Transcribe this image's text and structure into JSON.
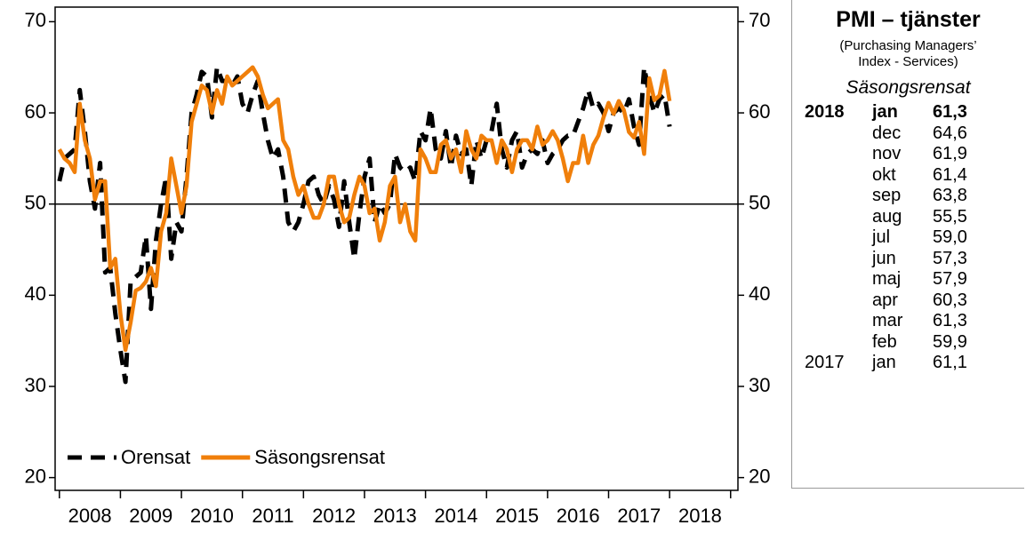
{
  "chart_data": {
    "type": "line",
    "x": [
      2008,
      2008.083,
      2008.167,
      2008.25,
      2008.333,
      2008.417,
      2008.5,
      2008.583,
      2008.667,
      2008.75,
      2008.833,
      2008.917,
      2009,
      2009.083,
      2009.167,
      2009.25,
      2009.333,
      2009.417,
      2009.5,
      2009.583,
      2009.667,
      2009.75,
      2009.833,
      2009.917,
      2010,
      2010.083,
      2010.167,
      2010.25,
      2010.333,
      2010.417,
      2010.5,
      2010.583,
      2010.667,
      2010.75,
      2010.833,
      2010.917,
      2011,
      2011.083,
      2011.167,
      2011.25,
      2011.333,
      2011.417,
      2011.5,
      2011.583,
      2011.667,
      2011.75,
      2011.833,
      2011.917,
      2012,
      2012.083,
      2012.167,
      2012.25,
      2012.333,
      2012.417,
      2012.5,
      2012.583,
      2012.667,
      2012.75,
      2012.833,
      2012.917,
      2013,
      2013.083,
      2013.167,
      2013.25,
      2013.333,
      2013.417,
      2013.5,
      2013.583,
      2013.667,
      2013.75,
      2013.833,
      2013.917,
      2014,
      2014.083,
      2014.167,
      2014.25,
      2014.333,
      2014.417,
      2014.5,
      2014.583,
      2014.667,
      2014.75,
      2014.833,
      2014.917,
      2015,
      2015.083,
      2015.167,
      2015.25,
      2015.333,
      2015.417,
      2015.5,
      2015.583,
      2015.667,
      2015.75,
      2015.833,
      2015.917,
      2016,
      2016.083,
      2016.167,
      2016.25,
      2016.333,
      2016.417,
      2016.5,
      2016.583,
      2016.667,
      2016.75,
      2016.833,
      2016.917,
      2017,
      2017.083,
      2017.167,
      2017.25,
      2017.333,
      2017.417,
      2017.5,
      2017.583,
      2017.667,
      2017.75,
      2017.833,
      2017.917,
      2018
    ],
    "series": [
      {
        "name": "Orensat",
        "color": "#000000",
        "dashed": true,
        "values": [
          52.5,
          55,
          55.5,
          56,
          62.5,
          58,
          52.5,
          49.5,
          54.5,
          42.5,
          43,
          38,
          34,
          30.5,
          41.5,
          42,
          42.5,
          46.5,
          38.5,
          46,
          50,
          53,
          44,
          48,
          47,
          53,
          60,
          62,
          64.5,
          64,
          59.5,
          65,
          63.5,
          63.5,
          63,
          64,
          61,
          60,
          62,
          63.5,
          60,
          57,
          55,
          56,
          53,
          48,
          47,
          48,
          50,
          52.5,
          53,
          51,
          50,
          52,
          50.5,
          47.5,
          52.5,
          48,
          44,
          49,
          53,
          55,
          48,
          50,
          49,
          50,
          55.5,
          54,
          53.5,
          54,
          52.5,
          58,
          57,
          60.5,
          56,
          55,
          58,
          54,
          57.5,
          55.5,
          56,
          52,
          57,
          55,
          57,
          58,
          61,
          56,
          54,
          57,
          58,
          54,
          55.5,
          56,
          55.5,
          57,
          54.5,
          55.5,
          56,
          57,
          57.5,
          57.5,
          59,
          60.5,
          62.5,
          60.5,
          61,
          60,
          58,
          60,
          60.5,
          60,
          61.5,
          58.5,
          56.5,
          65,
          62,
          60,
          61.5,
          62,
          58.5
        ]
      },
      {
        "name": "Säsongsrensat",
        "color": "#f07f0a",
        "dashed": false,
        "values": [
          56,
          55,
          54.5,
          53.5,
          61,
          57,
          55,
          50.5,
          52.5,
          52.5,
          43,
          44,
          38,
          34,
          37,
          40.5,
          40.8,
          41.5,
          43,
          41,
          47,
          49,
          55,
          52,
          49,
          52,
          59,
          61,
          63,
          62.5,
          60,
          62.5,
          61,
          64,
          63,
          63.5,
          64,
          64.5,
          65,
          64,
          62,
          60.5,
          61,
          61.5,
          57,
          56,
          53,
          51,
          52,
          50,
          48.5,
          48.5,
          50,
          53,
          53,
          50,
          48,
          48.5,
          51,
          53,
          52,
          49,
          49.5,
          46,
          48,
          52,
          53,
          48,
          50,
          47,
          46,
          56,
          55,
          53.5,
          53.5,
          56.5,
          57,
          55,
          56,
          53.5,
          58,
          56,
          55,
          57.5,
          57,
          57,
          54.5,
          57,
          56,
          53.5,
          56,
          57,
          57,
          56,
          58.5,
          56.5,
          57,
          58,
          57,
          55,
          52.5,
          54.5,
          54.5,
          57.5,
          54.5,
          56.5,
          57.5,
          59.5,
          61.1,
          59.9,
          61.3,
          60.3,
          57.9,
          57.3,
          59.0,
          55.5,
          63.8,
          61.4,
          61.9,
          64.6,
          61.3
        ]
      }
    ],
    "xlim": [
      2007.93,
      2019.12
    ],
    "xticks": [
      {
        "value": 2008,
        "label": "2008"
      },
      {
        "value": 2009,
        "label": "2009"
      },
      {
        "value": 2010,
        "label": "2010"
      },
      {
        "value": 2011,
        "label": "2011"
      },
      {
        "value": 2012,
        "label": "2012"
      },
      {
        "value": 2013,
        "label": "2013"
      },
      {
        "value": 2014,
        "label": "2014"
      },
      {
        "value": 2015,
        "label": "2015"
      },
      {
        "value": 2016,
        "label": "2016"
      },
      {
        "value": 2017,
        "label": "2017"
      },
      {
        "value": 2018,
        "label": "2018"
      },
      {
        "value": 2019,
        "label": null
      }
    ],
    "ylim": [
      18.6,
      71.6
    ],
    "yticks": [
      20,
      30,
      40,
      50,
      60,
      70
    ],
    "hline": 50,
    "legend": "lower left"
  },
  "panel": {
    "title": "PMI – tjänster",
    "subtitle": [
      "(Purchasing Managers’",
      "Index - Services)"
    ],
    "mode": "Säsongsrensat",
    "rows": [
      [
        "2018",
        "jan",
        "61,3"
      ],
      [
        null,
        "dec",
        "64,6"
      ],
      [
        null,
        "nov",
        "61,9"
      ],
      [
        null,
        "okt",
        "61,4"
      ],
      [
        null,
        "sep",
        "63,8"
      ],
      [
        null,
        "aug",
        "55,5"
      ],
      [
        null,
        "jul",
        "59,0"
      ],
      [
        null,
        "jun",
        "57,3"
      ],
      [
        null,
        "maj",
        "57,9"
      ],
      [
        null,
        "apr",
        "60,3"
      ],
      [
        null,
        "mar",
        "61,3"
      ],
      [
        null,
        "feb",
        "59,9"
      ],
      [
        "2017",
        "jan",
        "61,1"
      ]
    ]
  }
}
